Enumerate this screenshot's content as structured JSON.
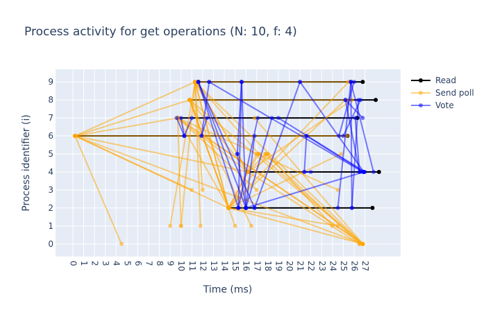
{
  "chart_data": {
    "type": "line",
    "title": "Process activity for get operations (N: 10, f: 4)",
    "xlabel": "Time (ms)",
    "ylabel": "Process identifier (i)",
    "x_ticks": [
      0,
      1,
      2,
      3,
      4,
      5,
      6,
      7,
      8,
      9,
      10,
      11,
      12,
      13,
      14,
      15,
      16,
      17,
      18,
      19,
      20,
      21,
      22,
      23,
      24,
      25,
      26,
      27
    ],
    "y_ticks": [
      0,
      1,
      2,
      3,
      4,
      5,
      6,
      7,
      8,
      9
    ],
    "xlim": [
      -1.6,
      30.3
    ],
    "ylim": [
      -0.7,
      9.7
    ],
    "grid": true,
    "legend_position": "top-right",
    "series": [
      {
        "name": "Read",
        "color": "#000000",
        "segments": [
          [
            [
              11.6,
              9
            ],
            [
              26.8,
              9
            ]
          ],
          [
            [
              10.8,
              8
            ],
            [
              28.0,
              8
            ]
          ],
          [
            [
              9.7,
              7
            ],
            [
              26.3,
              7
            ]
          ],
          [
            [
              0.2,
              6
            ],
            [
              25.4,
              6
            ]
          ],
          [
            [
              16.2,
              4
            ],
            [
              28.3,
              4
            ]
          ],
          [
            [
              14.4,
              2
            ],
            [
              27.7,
              2
            ]
          ]
        ]
      },
      {
        "name": "Send poll",
        "color": "#FFA500",
        "segments": [
          [
            [
              0.2,
              6
            ],
            [
              4.5,
              0
            ]
          ],
          [
            [
              0.2,
              6
            ],
            [
              11.3,
              9
            ]
          ],
          [
            [
              0.2,
              6
            ],
            [
              10.8,
              8
            ]
          ],
          [
            [
              0.2,
              6
            ],
            [
              9.7,
              7
            ]
          ],
          [
            [
              0.2,
              6
            ],
            [
              11.0,
              3
            ]
          ],
          [
            [
              0.2,
              6
            ],
            [
              14.4,
              2
            ]
          ],
          [
            [
              0.2,
              6
            ],
            [
              16.2,
              4
            ]
          ],
          [
            [
              0.2,
              6
            ],
            [
              26.8,
              0
            ]
          ],
          [
            [
              0.2,
              6
            ],
            [
              25.4,
              6
            ]
          ],
          [
            [
              11.3,
              9
            ],
            [
              9.0,
              1
            ]
          ],
          [
            [
              11.3,
              9
            ],
            [
              10.0,
              1
            ]
          ],
          [
            [
              11.3,
              9
            ],
            [
              11.8,
              1
            ]
          ],
          [
            [
              11.3,
              9
            ],
            [
              12.0,
              3
            ]
          ],
          [
            [
              11.3,
              9
            ],
            [
              14.4,
              2
            ]
          ],
          [
            [
              11.3,
              9
            ],
            [
              16.2,
              4
            ]
          ],
          [
            [
              11.3,
              9
            ],
            [
              17.2,
              5
            ]
          ],
          [
            [
              11.3,
              9
            ],
            [
              26.8,
              0
            ]
          ],
          [
            [
              11.3,
              9
            ],
            [
              25.5,
              9
            ]
          ],
          [
            [
              10.8,
              8
            ],
            [
              15.0,
              1
            ]
          ],
          [
            [
              10.8,
              8
            ],
            [
              14.4,
              2
            ]
          ],
          [
            [
              10.8,
              8
            ],
            [
              16.2,
              4
            ]
          ],
          [
            [
              10.8,
              8
            ],
            [
              26.8,
              0
            ]
          ],
          [
            [
              10.8,
              8
            ],
            [
              25.4,
              8
            ]
          ],
          [
            [
              10.8,
              8
            ],
            [
              16.5,
              1
            ]
          ],
          [
            [
              9.7,
              7
            ],
            [
              10.0,
              1
            ]
          ],
          [
            [
              9.7,
              7
            ],
            [
              14.4,
              2
            ]
          ],
          [
            [
              9.7,
              7
            ],
            [
              16.2,
              4
            ]
          ],
          [
            [
              9.7,
              7
            ],
            [
              26.8,
              0
            ]
          ],
          [
            [
              9.7,
              7
            ],
            [
              24.5,
              3
            ]
          ],
          [
            [
              9.7,
              7
            ],
            [
              17.0,
              3
            ]
          ],
          [
            [
              16.2,
              4
            ],
            [
              17.2,
              5
            ]
          ],
          [
            [
              16.2,
              4
            ],
            [
              17.8,
              5
            ]
          ],
          [
            [
              16.2,
              4
            ],
            [
              26.5,
              0
            ]
          ],
          [
            [
              16.2,
              4
            ],
            [
              11.3,
              9
            ]
          ],
          [
            [
              16.2,
              4
            ],
            [
              25.8,
              8
            ]
          ],
          [
            [
              16.2,
              4
            ],
            [
              14.4,
              2
            ]
          ],
          [
            [
              14.4,
              2
            ],
            [
              11.3,
              9
            ]
          ],
          [
            [
              14.4,
              2
            ],
            [
              10.8,
              8
            ]
          ],
          [
            [
              14.4,
              2
            ],
            [
              17.0,
              5
            ]
          ],
          [
            [
              14.4,
              2
            ],
            [
              18.0,
              5
            ]
          ],
          [
            [
              14.4,
              2
            ],
            [
              24.8,
              5
            ]
          ],
          [
            [
              14.4,
              2
            ],
            [
              26.8,
              0
            ]
          ],
          [
            [
              14.4,
              2
            ],
            [
              25.5,
              9
            ]
          ],
          [
            [
              14.4,
              2
            ],
            [
              25.2,
              8
            ]
          ],
          [
            [
              14.4,
              2
            ],
            [
              24.5,
              1
            ]
          ],
          [
            [
              17.2,
              5
            ],
            [
              26.8,
              0
            ]
          ],
          [
            [
              17.8,
              5
            ],
            [
              26.5,
              0
            ]
          ],
          [
            [
              18.0,
              5
            ],
            [
              24.0,
              1
            ]
          ],
          [
            [
              26.8,
              0
            ],
            [
              16.8,
              7
            ]
          ],
          [
            [
              26.8,
              0
            ],
            [
              12.1,
              6
            ]
          ]
        ]
      },
      {
        "name": "Vote",
        "color": "#0000FF",
        "segments": [
          [
            [
              11.6,
              9
            ],
            [
              15.3,
              2
            ]
          ],
          [
            [
              11.6,
              9
            ],
            [
              16.0,
              2
            ]
          ],
          [
            [
              11.6,
              9
            ],
            [
              16.8,
              2
            ]
          ],
          [
            [
              12.6,
              9
            ],
            [
              11.9,
              6
            ]
          ],
          [
            [
              12.6,
              9
            ],
            [
              26.8,
              4
            ]
          ],
          [
            [
              15.6,
              9
            ],
            [
              15.3,
              2
            ]
          ],
          [
            [
              15.6,
              9
            ],
            [
              16.0,
              2
            ]
          ],
          [
            [
              15.6,
              9
            ],
            [
              15.2,
              5
            ]
          ],
          [
            [
              21.0,
              9
            ],
            [
              16.8,
              2
            ]
          ],
          [
            [
              21.0,
              9
            ],
            [
              26.9,
              4
            ]
          ],
          [
            [
              25.7,
              9
            ],
            [
              24.5,
              2
            ]
          ],
          [
            [
              25.7,
              9
            ],
            [
              25.8,
              2
            ]
          ],
          [
            [
              25.7,
              9
            ],
            [
              27.8,
              4
            ]
          ],
          [
            [
              25.2,
              8
            ],
            [
              26.5,
              4
            ]
          ],
          [
            [
              25.2,
              8
            ],
            [
              26.8,
              7
            ]
          ],
          [
            [
              26.4,
              8
            ],
            [
              25.8,
              2
            ]
          ],
          [
            [
              10.0,
              7
            ],
            [
              10.3,
              6
            ]
          ],
          [
            [
              12.4,
              7
            ],
            [
              11.9,
              6
            ]
          ],
          [
            [
              17.1,
              7
            ],
            [
              15.3,
              2
            ]
          ],
          [
            [
              19.0,
              7
            ],
            [
              27.0,
              4
            ]
          ],
          [
            [
              18.4,
              7
            ],
            [
              16.0,
              2
            ]
          ],
          [
            [
              16.8,
              6
            ],
            [
              16.0,
              2
            ]
          ],
          [
            [
              21.6,
              6
            ],
            [
              21.4,
              4
            ]
          ],
          [
            [
              21.6,
              6
            ],
            [
              26.9,
              4
            ]
          ],
          [
            [
              25.0,
              6
            ],
            [
              26.6,
              8
            ]
          ],
          [
            [
              24.6,
              6
            ],
            [
              26.0,
              9
            ]
          ],
          [
            [
              26.1,
              7
            ],
            [
              26.5,
              4
            ]
          ],
          [
            [
              9.6,
              7
            ],
            [
              10.3,
              6
            ]
          ],
          [
            [
              10.3,
              6
            ],
            [
              11.0,
              7
            ]
          ],
          [
            [
              15.2,
              5
            ],
            [
              16.0,
              2
            ]
          ],
          [
            [
              21.4,
              4
            ],
            [
              22.0,
              4
            ]
          ],
          [
            [
              16.0,
              2
            ],
            [
              26.9,
              4
            ]
          ]
        ]
      }
    ]
  }
}
